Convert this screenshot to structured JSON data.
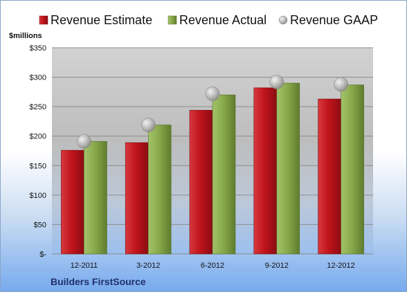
{
  "chart_data": {
    "type": "bar",
    "title": "",
    "ylabel": "$millions",
    "xlabel": "",
    "categories": [
      "12-2011",
      "3-2012",
      "6-2012",
      "9-2012",
      "12-2012"
    ],
    "series": [
      {
        "name": "Revenue Estimate",
        "type": "bar",
        "color": "#c0141b",
        "values": [
          176,
          189,
          244,
          282,
          263
        ]
      },
      {
        "name": "Revenue Actual",
        "type": "bar",
        "color": "#8aab4c",
        "values": [
          191,
          219,
          270,
          290,
          287
        ]
      },
      {
        "name": "Revenue GAAP",
        "type": "marker",
        "color": "#b8b8b8",
        "values": [
          191,
          219,
          272,
          292,
          288
        ]
      }
    ],
    "ylim": [
      0,
      350
    ],
    "yticks": [
      {
        "value": 0,
        "label": "$-"
      },
      {
        "value": 50,
        "label": "$50"
      },
      {
        "value": 100,
        "label": "$100"
      },
      {
        "value": 150,
        "label": "$150"
      },
      {
        "value": 200,
        "label": "$200"
      },
      {
        "value": 250,
        "label": "$250"
      },
      {
        "value": 300,
        "label": "$300"
      },
      {
        "value": 350,
        "label": "$350"
      }
    ],
    "grid": true,
    "legend": "top"
  },
  "footer": {
    "company": "Builders FirstSource"
  }
}
